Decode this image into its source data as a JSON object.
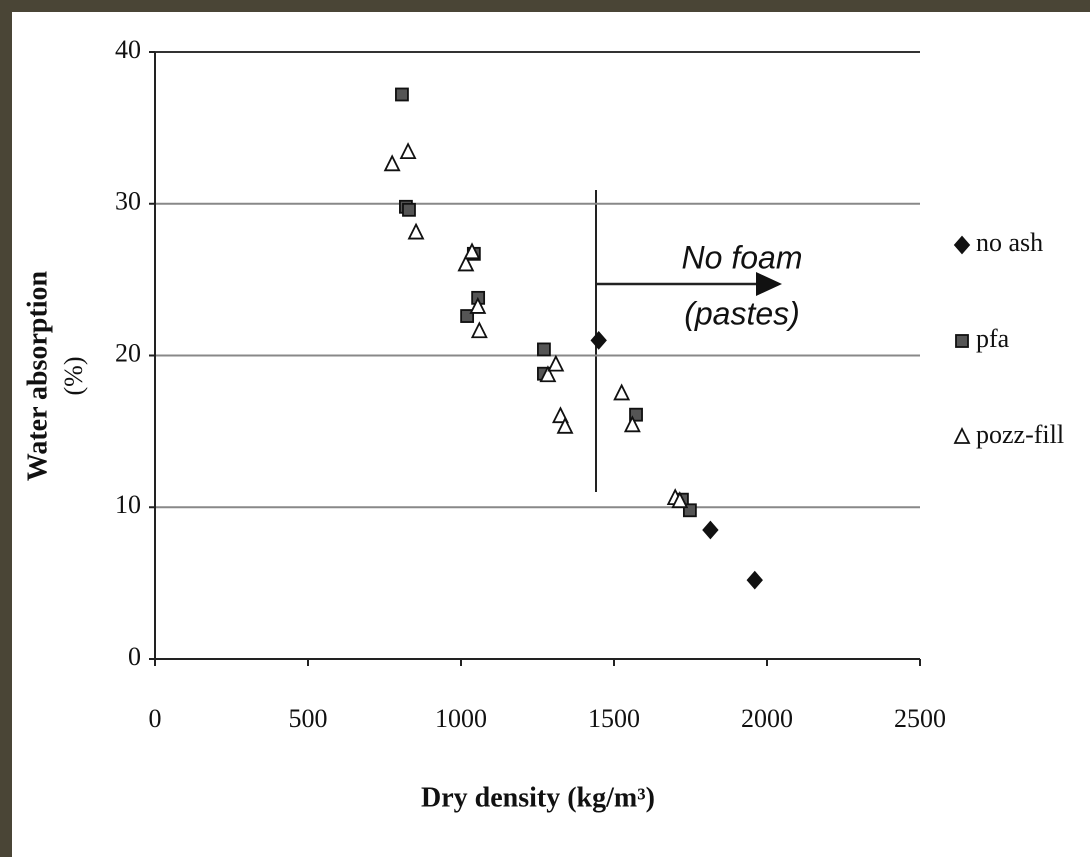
{
  "chart_data": {
    "type": "scatter",
    "xlabel": "Dry density (kg/m³)",
    "ylabel": [
      "Water absorption",
      "(%)"
    ],
    "annotation": [
      "No foam",
      "(pastes)"
    ],
    "xlim": [
      0,
      2500
    ],
    "xticks": [
      0,
      500,
      1000,
      1500,
      2000,
      2500
    ],
    "ylim": [
      0,
      40
    ],
    "yticks": [
      0,
      10,
      20,
      30,
      40
    ],
    "grid": true,
    "legend": "right",
    "series": [
      {
        "name": "no ash",
        "marker": "diamond",
        "color": "#111111",
        "x": [
          1450,
          1815,
          1960
        ],
        "values": [
          21.0,
          8.5,
          5.2
        ]
      },
      {
        "name": "pfa",
        "marker": "square",
        "color": "#555555",
        "x": [
          807,
          820,
          830,
          1042,
          1056,
          1020,
          1271,
          1271,
          1572,
          1722,
          1748
        ],
        "values": [
          37.2,
          29.8,
          29.6,
          26.7,
          23.8,
          22.6,
          20.4,
          18.8,
          16.1,
          10.5,
          9.8
        ]
      },
      {
        "name": "pozz-fill",
        "marker": "triangle",
        "color": "#ffffff",
        "x": [
          775,
          827,
          853,
          1016,
          1036,
          1055,
          1060,
          1284,
          1310,
          1325,
          1340,
          1525,
          1560,
          1700,
          1715
        ],
        "values": [
          32.6,
          33.4,
          28.1,
          26.0,
          26.8,
          23.2,
          21.6,
          18.7,
          19.4,
          16.0,
          15.3,
          17.5,
          15.4,
          10.6,
          10.4
        ]
      }
    ]
  }
}
